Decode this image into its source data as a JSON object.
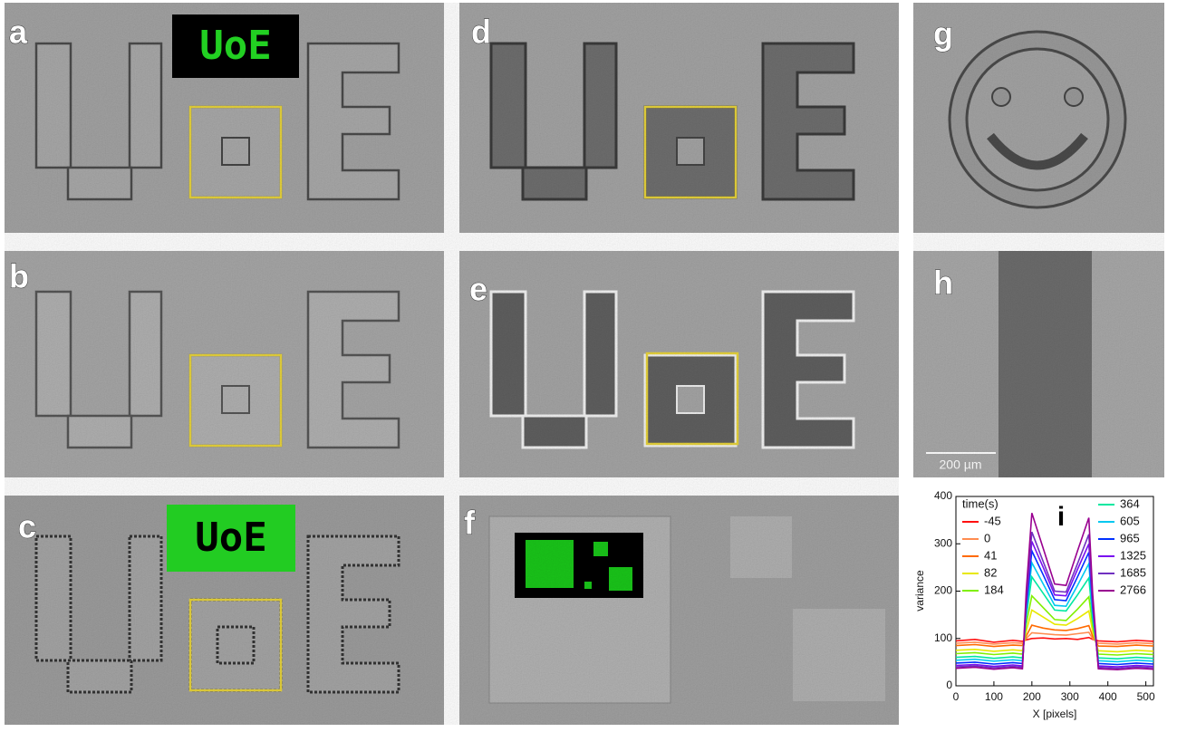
{
  "figure": {
    "panels": [
      {
        "label": "a",
        "inset": "UoE"
      },
      {
        "label": "b"
      },
      {
        "label": "c",
        "inset": "UoE"
      },
      {
        "label": "d"
      },
      {
        "label": "e"
      },
      {
        "label": "f"
      },
      {
        "label": "g"
      },
      {
        "label": "h",
        "scale_bar": "200 µm"
      }
    ]
  },
  "chart_data": {
    "type": "line",
    "label": "i",
    "xlabel": "X [pixels]",
    "ylabel": "variance",
    "legend_title": "time(s)",
    "x": [
      0,
      50,
      100,
      150,
      175,
      185,
      200,
      230,
      260,
      290,
      320,
      350,
      360,
      375,
      425,
      475,
      520
    ],
    "xlim": [
      0,
      520
    ],
    "xticks": [
      0,
      100,
      200,
      300,
      400,
      500
    ],
    "ylim": [
      0,
      400
    ],
    "yticks": [
      0,
      100,
      200,
      300,
      400
    ],
    "series": [
      {
        "name": "-45",
        "color": "#ff1010",
        "values": [
          95,
          98,
          92,
          96,
          94,
          97,
          100,
          101,
          99,
          100,
          98,
          102,
          98,
          95,
          93,
          96,
          94
        ]
      },
      {
        "name": "0",
        "color": "#ff8c50",
        "values": [
          90,
          92,
          88,
          91,
          90,
          100,
          112,
          110,
          108,
          107,
          110,
          113,
          100,
          90,
          88,
          91,
          89
        ]
      },
      {
        "name": "41",
        "color": "#ff6a00",
        "values": [
          85,
          87,
          83,
          86,
          85,
          105,
          128,
          122,
          118,
          117,
          121,
          127,
          105,
          84,
          83,
          86,
          84
        ]
      },
      {
        "name": "82",
        "color": "#e8e800",
        "values": [
          75,
          77,
          73,
          76,
          74,
          115,
          160,
          145,
          130,
          128,
          142,
          158,
          115,
          74,
          72,
          75,
          73
        ]
      },
      {
        "name": "184",
        "color": "#80f000",
        "values": [
          68,
          70,
          66,
          69,
          67,
          130,
          190,
          165,
          140,
          138,
          162,
          188,
          128,
          67,
          65,
          68,
          66
        ]
      },
      {
        "name": "364",
        "color": "#00e8a0",
        "values": [
          60,
          62,
          58,
          61,
          59,
          145,
          230,
          195,
          160,
          158,
          192,
          228,
          142,
          59,
          57,
          60,
          58
        ]
      },
      {
        "name": "605",
        "color": "#00c8f0",
        "values": [
          54,
          56,
          52,
          55,
          53,
          155,
          260,
          215,
          170,
          168,
          212,
          258,
          155,
          53,
          51,
          54,
          52
        ]
      },
      {
        "name": "965",
        "color": "#0030ff",
        "values": [
          48,
          50,
          46,
          49,
          47,
          165,
          285,
          234,
          182,
          180,
          230,
          282,
          165,
          47,
          45,
          48,
          46
        ]
      },
      {
        "name": "1325",
        "color": "#7a10f0",
        "values": [
          43,
          45,
          41,
          44,
          42,
          175,
          305,
          250,
          192,
          190,
          246,
          300,
          172,
          42,
          40,
          43,
          41
        ]
      },
      {
        "name": "1685",
        "color": "#7030c0",
        "values": [
          40,
          42,
          38,
          41,
          39,
          180,
          325,
          262,
          200,
          198,
          258,
          320,
          180,
          39,
          37,
          40,
          38
        ]
      },
      {
        "name": "2766",
        "color": "#990090",
        "values": [
          37,
          39,
          35,
          38,
          36,
          200,
          365,
          290,
          215,
          212,
          285,
          355,
          195,
          36,
          34,
          37,
          35
        ]
      }
    ]
  }
}
